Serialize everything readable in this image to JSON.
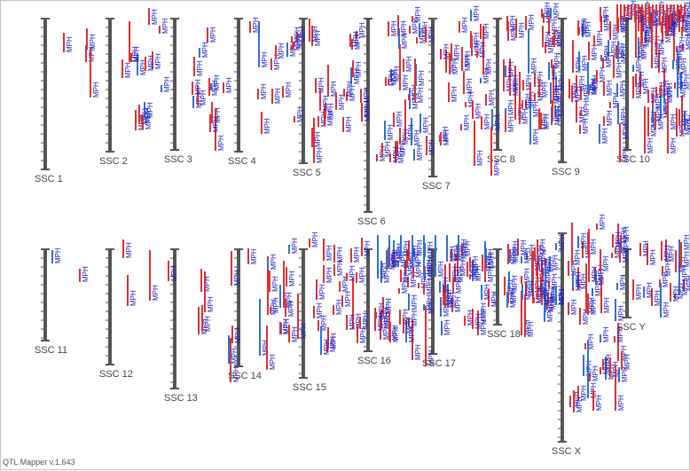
{
  "app": {
    "version_label": "QTL Mapper v.1.643"
  },
  "trait_label": "MPH",
  "colors": {
    "chromosome": "#555555",
    "qtl_red": "#e03030",
    "qtl_blue": "#3070d0",
    "text_blue": "#2020c0"
  },
  "chromosomes": [
    {
      "name": "SSC 1"
    },
    {
      "name": "SSC 2"
    },
    {
      "name": "SSC 3"
    },
    {
      "name": "SSC 4"
    },
    {
      "name": "SSC 5"
    },
    {
      "name": "SSC 6"
    },
    {
      "name": "SSC 7"
    },
    {
      "name": "SSC 8"
    },
    {
      "name": "SSC 9"
    },
    {
      "name": "SSC 10"
    },
    {
      "name": "SSC 11"
    },
    {
      "name": "SSC 12"
    },
    {
      "name": "SSC 13"
    },
    {
      "name": "SSC 14"
    },
    {
      "name": "SSC 15"
    },
    {
      "name": "SSC 16"
    },
    {
      "name": "SSC 17"
    },
    {
      "name": "SSC 18"
    },
    {
      "name": "SSC X"
    },
    {
      "name": "SSC Y"
    }
  ]
}
